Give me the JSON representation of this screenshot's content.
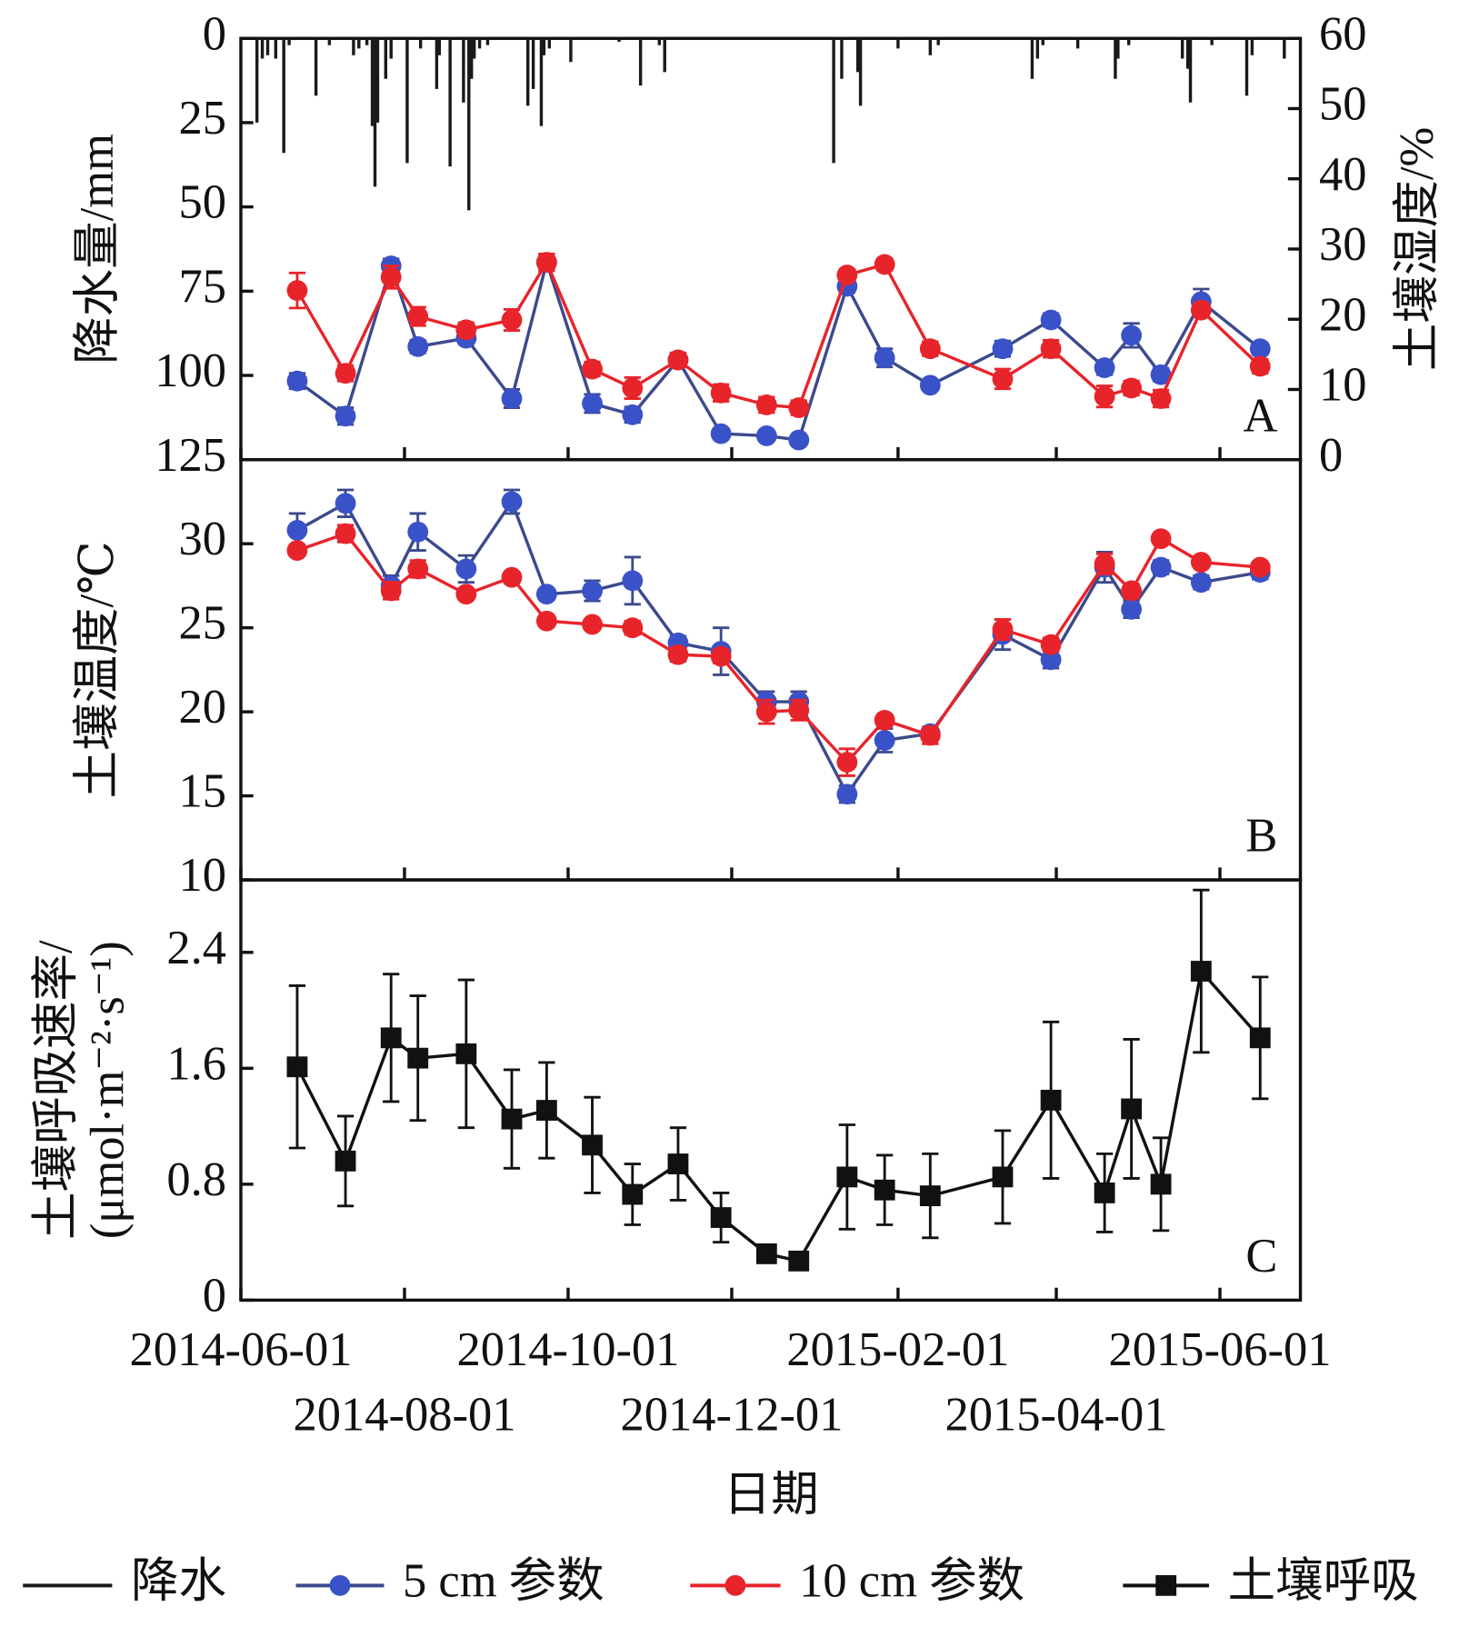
{
  "chart_data": [
    {
      "type": "combo",
      "ylabel": "降水量/mm",
      "y2label": "土壤湿度/%",
      "annotation": "A",
      "reverse_y": true,
      "xlim": [
        "2014-06-01",
        "2015-07-01"
      ],
      "ylim": [
        0,
        125
      ],
      "yticks": [
        0,
        25,
        50,
        75,
        100,
        125
      ],
      "y2lim": [
        0,
        60
      ],
      "y2ticks": [
        0,
        10,
        20,
        30,
        40,
        50,
        60
      ],
      "x": [
        "2014-06-22",
        "2014-07-10",
        "2014-07-27",
        "2014-08-06",
        "2014-08-24",
        "2014-09-10",
        "2014-09-23",
        "2014-10-10",
        "2014-10-25",
        "2014-11-11",
        "2014-11-27",
        "2014-12-14",
        "2014-12-26",
        "2015-01-13",
        "2015-01-27",
        "2015-02-13",
        "2015-03-12",
        "2015-03-30",
        "2015-04-19",
        "2015-04-29",
        "2015-05-10",
        "2015-05-25",
        "2015-06-16"
      ],
      "series": [
        {
          "name": "降水",
          "type": "bar",
          "color": "#1a1a1a",
          "x": [
            "2014-06-07",
            "2014-06-09",
            "2014-06-11",
            "2014-06-14",
            "2014-06-17",
            "2014-06-19",
            "2014-06-29",
            "2014-07-04",
            "2014-07-13",
            "2014-07-15",
            "2014-07-18",
            "2014-07-20",
            "2014-07-21",
            "2014-07-22",
            "2014-07-25",
            "2014-07-27",
            "2014-08-02",
            "2014-08-07",
            "2014-08-13",
            "2014-08-14",
            "2014-08-18",
            "2014-08-23",
            "2014-08-25",
            "2014-08-26",
            "2014-08-27",
            "2014-08-29",
            "2014-09-01",
            "2014-09-16",
            "2014-09-18",
            "2014-09-21",
            "2014-09-22",
            "2014-09-24",
            "2014-10-02",
            "2014-10-20",
            "2014-10-28",
            "2014-11-04",
            "2014-11-06",
            "2015-01-08",
            "2015-01-11",
            "2015-01-17",
            "2015-01-18",
            "2015-02-01",
            "2015-02-13",
            "2015-02-16",
            "2015-03-23",
            "2015-03-25",
            "2015-03-27",
            "2015-04-09",
            "2015-04-23",
            "2015-04-24",
            "2015-04-28",
            "2015-05-18",
            "2015-05-20",
            "2015-05-21",
            "2015-05-29",
            "2015-06-11",
            "2015-06-13",
            "2015-06-25"
          ],
          "values": [
            25,
            6,
            5,
            6,
            34,
            2,
            17,
            2,
            5,
            3,
            2,
            26,
            44,
            25,
            12,
            6,
            37,
            3,
            15,
            5,
            38,
            19,
            51,
            12,
            6,
            3,
            2,
            20,
            15,
            26,
            5,
            3,
            7,
            1,
            14,
            2,
            10,
            37,
            12,
            10,
            20,
            3,
            5,
            2,
            12,
            6,
            2,
            3,
            12,
            6,
            2,
            6,
            9,
            19,
            2,
            17,
            5,
            6
          ]
        },
        {
          "name": "5 cm 参数",
          "color": "#3a52c8",
          "line_color": "#3c4a8c",
          "axis": "y2",
          "marker": "circle",
          "values": [
            11.2,
            6.2,
            27.6,
            16.1,
            17.3,
            8.7,
            28.1,
            8.0,
            6.4,
            14.2,
            3.7,
            3.4,
            2.8,
            24.7,
            14.5,
            10.6,
            15.8,
            19.9,
            13.1,
            17.7,
            12.1,
            22.5,
            15.8
          ],
          "errors": [
            1.1,
            1.2,
            1.0,
            0.9,
            0.8,
            1.3,
            1.0,
            1.3,
            1.1,
            1.0,
            0.6,
            0.5,
            0.6,
            0.9,
            1.3,
            0.6,
            1.1,
            0.9,
            1.0,
            1.7,
            0.9,
            1.8,
            0.8
          ]
        },
        {
          "name": "10 cm 参数",
          "color": "#e8242b",
          "line_color": "#e8242b",
          "axis": "y2",
          "marker": "circle",
          "values": [
            24.1,
            12.3,
            26.0,
            20.4,
            18.5,
            19.9,
            28.1,
            12.9,
            10.2,
            14.2,
            9.5,
            7.8,
            7.4,
            26.3,
            27.8,
            15.8,
            11.5,
            15.8,
            9.0,
            10.2,
            8.7,
            21.3,
            13.3
          ],
          "errors": [
            2.5,
            1.1,
            1.6,
            1.3,
            1.0,
            1.5,
            1.2,
            1.0,
            1.5,
            1.0,
            1.2,
            1.1,
            1.0,
            0.8,
            0.8,
            1.0,
            1.4,
            1.2,
            1.5,
            1.0,
            1.2,
            1.0,
            1.0
          ]
        }
      ]
    },
    {
      "type": "line",
      "ylabel": "土壤温度/℃",
      "annotation": "B",
      "xlim": [
        "2014-06-01",
        "2015-07-01"
      ],
      "ylim": [
        10,
        35
      ],
      "yticks": [
        10,
        15,
        20,
        25,
        30
      ],
      "x": [
        "2014-06-22",
        "2014-07-10",
        "2014-07-27",
        "2014-08-06",
        "2014-08-24",
        "2014-09-10",
        "2014-09-23",
        "2014-10-10",
        "2014-10-25",
        "2014-11-11",
        "2014-11-27",
        "2014-12-14",
        "2014-12-26",
        "2015-01-13",
        "2015-01-27",
        "2015-02-13",
        "2015-03-12",
        "2015-03-30",
        "2015-04-19",
        "2015-04-29",
        "2015-05-10",
        "2015-05-25",
        "2015-06-16"
      ],
      "series": [
        {
          "color": "#3a52c8",
          "line_color": "#3c4a8c",
          "marker": "circle",
          "values": [
            30.8,
            32.4,
            27.5,
            30.7,
            28.5,
            32.5,
            27.0,
            27.2,
            27.8,
            24.1,
            23.6,
            20.6,
            20.6,
            15.1,
            18.3,
            18.7,
            24.6,
            23.1,
            28.6,
            26.1,
            28.6,
            27.7,
            28.3
          ],
          "errors": [
            1.0,
            0.8,
            0.6,
            1.1,
            0.8,
            0.7,
            0.3,
            0.6,
            1.4,
            0.4,
            1.4,
            0.6,
            0.6,
            0.5,
            0.7,
            0.3,
            0.9,
            0.5,
            0.9,
            0.5,
            0.4,
            0.4,
            0.4
          ]
        },
        {
          "color": "#e8242b",
          "line_color": "#e8242b",
          "marker": "circle",
          "values": [
            29.6,
            30.6,
            27.2,
            28.5,
            27.0,
            28.0,
            25.4,
            25.2,
            25.0,
            23.4,
            23.3,
            20.0,
            20.1,
            17.0,
            19.5,
            18.6,
            24.9,
            24.0,
            28.8,
            27.2,
            30.3,
            28.9,
            28.6
          ],
          "errors": [
            0.3,
            0.5,
            0.5,
            0.5,
            0.3,
            0.3,
            0.3,
            0.3,
            0.4,
            0.4,
            0.4,
            0.7,
            0.6,
            0.8,
            0.3,
            0.5,
            0.6,
            0.4,
            0.6,
            0.4,
            0.3,
            0.3,
            0.3
          ]
        }
      ]
    },
    {
      "type": "line",
      "ylabel": [
        "土壤呼吸速率/",
        "(μmol·m⁻²·s⁻¹)"
      ],
      "annotation": "C",
      "xlabel": "日期",
      "xlim": [
        "2014-06-01",
        "2015-07-01"
      ],
      "ylim": [
        0,
        2.9
      ],
      "yticks": [
        0,
        0.8,
        1.6,
        2.4
      ],
      "xticks": [
        "2014-06-01",
        "2014-08-01",
        "2014-10-01",
        "2014-12-01",
        "2015-02-01",
        "2015-04-01",
        "2015-06-01"
      ],
      "x": [
        "2014-06-22",
        "2014-07-10",
        "2014-07-27",
        "2014-08-06",
        "2014-08-24",
        "2014-09-10",
        "2014-09-23",
        "2014-10-10",
        "2014-10-25",
        "2014-11-11",
        "2014-11-27",
        "2014-12-14",
        "2014-12-26",
        "2015-01-13",
        "2015-01-27",
        "2015-02-13",
        "2015-03-12",
        "2015-03-30",
        "2015-04-19",
        "2015-04-29",
        "2015-05-10",
        "2015-05-25",
        "2015-06-16"
      ],
      "series": [
        {
          "name": "土壤呼吸",
          "color": "#111111",
          "line_color": "#111111",
          "marker": "square",
          "values": [
            1.61,
            0.96,
            1.81,
            1.67,
            1.7,
            1.25,
            1.31,
            1.07,
            0.73,
            0.94,
            0.57,
            0.32,
            0.27,
            0.85,
            0.76,
            0.72,
            0.85,
            1.38,
            0.74,
            1.32,
            0.8,
            2.27,
            1.81
          ],
          "errors": [
            0.56,
            0.31,
            0.44,
            0.43,
            0.51,
            0.34,
            0.33,
            0.33,
            0.21,
            0.25,
            0.17,
            0.06,
            0.06,
            0.36,
            0.24,
            0.29,
            0.32,
            0.54,
            0.27,
            0.48,
            0.32,
            0.56,
            0.42
          ]
        }
      ]
    }
  ]
}
